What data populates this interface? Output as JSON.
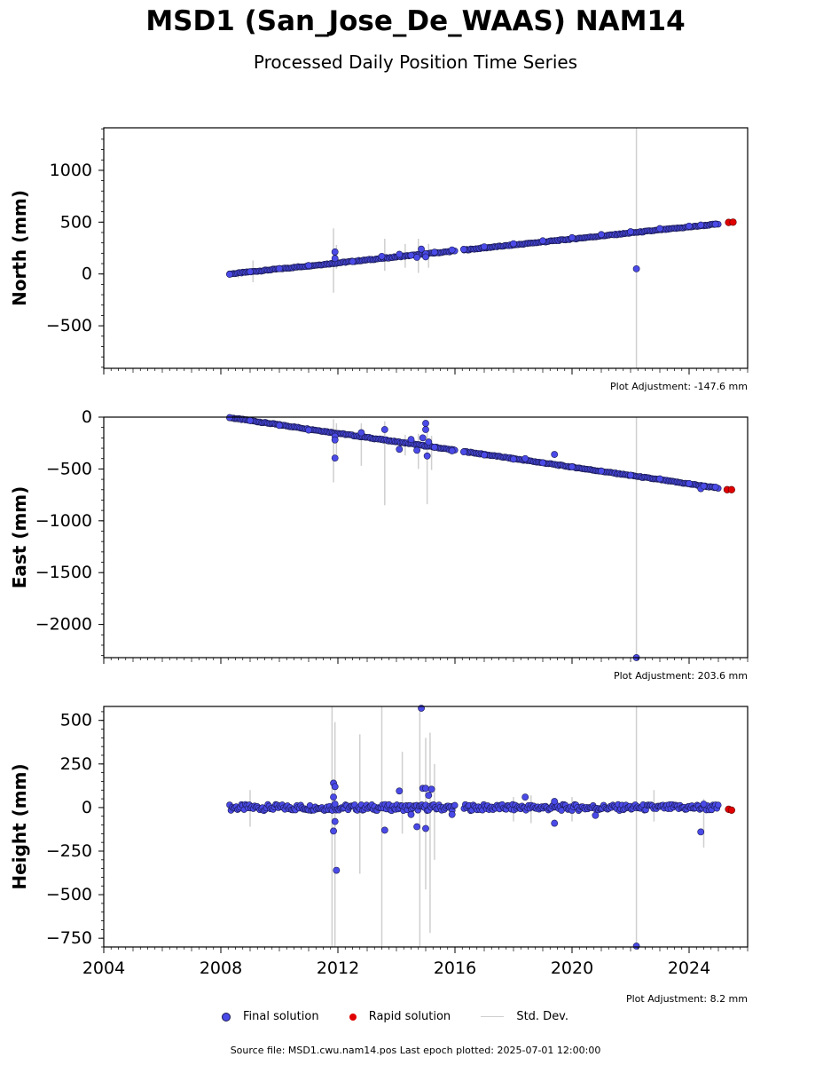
{
  "header": {
    "title": "MSD1 (San_Jose_De_WAAS) NAM14",
    "subtitle": "Processed Daily Position Time Series"
  },
  "legend": {
    "final": "Final solution",
    "rapid": "Rapid solution",
    "std": "Std. Dev."
  },
  "footer": {
    "source": "Source file: MSD1.cwu.nam14.pos  Last epoch plotted: 2025-07-01 12:00:00"
  },
  "colors": {
    "final": "#4a4ae8",
    "final_edge": "#1a1a50",
    "rapid": "#e00000",
    "std": "#cfcfcf"
  },
  "chart_data": [
    {
      "type": "scatter",
      "ylabel": "North (mm)",
      "adjustment": "Plot Adjustment: -147.6 mm",
      "xlim": [
        2004,
        2026
      ],
      "ylim": [
        -910,
        1410
      ],
      "yticks": [
        -500,
        0,
        500,
        1000
      ],
      "ytick_labels": [
        "−500",
        "0",
        "500",
        "1000"
      ],
      "trend": {
        "start": [
          2008.3,
          0
        ],
        "gap": [
          2016.0,
          2016.3
        ],
        "end": [
          2025.0,
          482
        ]
      },
      "final_points": [
        [
          2008.3,
          -3
        ],
        [
          2009.0,
          22
        ],
        [
          2010.0,
          52
        ],
        [
          2011.0,
          82
        ],
        [
          2011.9,
          213
        ],
        [
          2011.9,
          150
        ],
        [
          2012.5,
          120
        ],
        [
          2013.5,
          170
        ],
        [
          2014.1,
          190
        ],
        [
          2014.5,
          180
        ],
        [
          2014.7,
          160
        ],
        [
          2014.85,
          240
        ],
        [
          2015.0,
          195
        ],
        [
          2015.0,
          165
        ],
        [
          2015.3,
          210
        ],
        [
          2015.9,
          232
        ],
        [
          2016.3,
          238
        ],
        [
          2017.0,
          262
        ],
        [
          2018.0,
          292
        ],
        [
          2019.0,
          320
        ],
        [
          2020.0,
          350
        ],
        [
          2021.0,
          380
        ],
        [
          2022.0,
          408
        ],
        [
          2022.2,
          50
        ],
        [
          2023.0,
          438
        ],
        [
          2024.0,
          462
        ],
        [
          2024.4,
          472
        ],
        [
          2024.9,
          480
        ]
      ],
      "rapid_points": [
        [
          2025.35,
          497
        ],
        [
          2025.5,
          500
        ]
      ],
      "std_bars": [
        [
          2008.6,
          -40,
          40
        ],
        [
          2009.1,
          -80,
          130
        ],
        [
          2011.85,
          -180,
          440
        ],
        [
          2011.95,
          50,
          280
        ],
        [
          2013.6,
          30,
          340
        ],
        [
          2014.3,
          60,
          290
        ],
        [
          2014.75,
          10,
          340
        ],
        [
          2015.1,
          60,
          290
        ],
        [
          2022.2,
          -910,
          1410
        ]
      ]
    },
    {
      "type": "scatter",
      "ylabel": "East (mm)",
      "adjustment": "Plot Adjustment: 203.6 mm",
      "xlim": [
        2004,
        2026
      ],
      "ylim": [
        -2320,
        0
      ],
      "yticks": [
        -2000,
        -1500,
        -1000,
        -500,
        0
      ],
      "ytick_labels": [
        "−2000",
        "−1500",
        "−1000",
        "−500",
        "0"
      ],
      "trend": {
        "start": [
          2008.3,
          -5
        ],
        "gap": [
          2016.0,
          2016.3
        ],
        "end": [
          2025.0,
          -685
        ]
      },
      "final_points": [
        [
          2008.3,
          -5
        ],
        [
          2009.0,
          -33
        ],
        [
          2010.0,
          -80
        ],
        [
          2011.0,
          -125
        ],
        [
          2011.9,
          -185
        ],
        [
          2011.9,
          -395
        ],
        [
          2011.9,
          -220
        ],
        [
          2012.8,
          -150
        ],
        [
          2013.6,
          -120
        ],
        [
          2014.1,
          -310
        ],
        [
          2014.5,
          -215
        ],
        [
          2014.7,
          -320
        ],
        [
          2014.9,
          -200
        ],
        [
          2015.0,
          -60
        ],
        [
          2015.0,
          -120
        ],
        [
          2015.05,
          -375
        ],
        [
          2015.1,
          -240
        ],
        [
          2015.3,
          -290
        ],
        [
          2015.9,
          -325
        ],
        [
          2016.3,
          -335
        ],
        [
          2017.0,
          -365
        ],
        [
          2018.0,
          -405
        ],
        [
          2018.4,
          -400
        ],
        [
          2019.0,
          -440
        ],
        [
          2019.4,
          -360
        ],
        [
          2020.0,
          -480
        ],
        [
          2021.0,
          -520
        ],
        [
          2022.0,
          -560
        ],
        [
          2022.2,
          -2320
        ],
        [
          2023.0,
          -595
        ],
        [
          2024.0,
          -640
        ],
        [
          2024.4,
          -690
        ],
        [
          2024.5,
          -665
        ],
        [
          2024.9,
          -675
        ]
      ],
      "rapid_points": [
        [
          2025.3,
          -700
        ],
        [
          2025.45,
          -700
        ]
      ],
      "std_bars": [
        [
          2008.6,
          -60,
          10
        ],
        [
          2009.4,
          -70,
          -20
        ],
        [
          2011.85,
          -630,
          -20
        ],
        [
          2011.95,
          -360,
          -60
        ],
        [
          2012.8,
          -470,
          -60
        ],
        [
          2013.6,
          -850,
          -40
        ],
        [
          2014.3,
          -370,
          -170
        ],
        [
          2014.75,
          -500,
          -160
        ],
        [
          2015.05,
          -840,
          -30
        ],
        [
          2015.2,
          -510,
          -180
        ],
        [
          2022.2,
          -2320,
          0
        ]
      ]
    },
    {
      "type": "scatter",
      "ylabel": "Height (mm)",
      "adjustment": "Plot Adjustment: 8.2 mm",
      "xlim": [
        2004,
        2026
      ],
      "ylim": [
        -800,
        580
      ],
      "yticks": [
        -750,
        -500,
        -250,
        0,
        250,
        500
      ],
      "ytick_labels": [
        "−750",
        "−500",
        "−250",
        "0",
        "250",
        "500"
      ],
      "trend": {
        "start": [
          2008.3,
          0
        ],
        "gap": [
          2016.0,
          2016.3
        ],
        "end": [
          2025.0,
          0
        ]
      },
      "final_points": [
        [
          2011.85,
          140
        ],
        [
          2011.9,
          120
        ],
        [
          2011.85,
          60
        ],
        [
          2011.9,
          20
        ],
        [
          2011.9,
          -80
        ],
        [
          2011.85,
          -135
        ],
        [
          2011.95,
          -360
        ],
        [
          2013.6,
          -130
        ],
        [
          2014.1,
          95
        ],
        [
          2014.5,
          -40
        ],
        [
          2014.7,
          -110
        ],
        [
          2014.85,
          570
        ],
        [
          2014.9,
          110
        ],
        [
          2015.0,
          110
        ],
        [
          2015.0,
          -120
        ],
        [
          2015.1,
          70
        ],
        [
          2015.2,
          105
        ],
        [
          2015.9,
          -40
        ],
        [
          2018.4,
          60
        ],
        [
          2019.4,
          35
        ],
        [
          2019.4,
          -90
        ],
        [
          2020.8,
          -45
        ],
        [
          2022.2,
          -795
        ],
        [
          2024.4,
          -140
        ],
        [
          2024.5,
          20
        ]
      ],
      "rapid_points": [
        [
          2025.35,
          -10
        ],
        [
          2025.45,
          -15
        ]
      ],
      "std_bars": [
        [
          2009.0,
          -110,
          100
        ],
        [
          2011.8,
          -800,
          580
        ],
        [
          2011.9,
          -800,
          490
        ],
        [
          2012.75,
          -380,
          420
        ],
        [
          2013.5,
          -800,
          580
        ],
        [
          2014.2,
          -150,
          320
        ],
        [
          2014.8,
          -800,
          580
        ],
        [
          2015.0,
          -470,
          400
        ],
        [
          2015.15,
          -720,
          430
        ],
        [
          2015.3,
          -300,
          250
        ],
        [
          2018.0,
          -80,
          60
        ],
        [
          2018.6,
          -90,
          70
        ],
        [
          2020.0,
          -80,
          60
        ],
        [
          2022.2,
          -800,
          580
        ],
        [
          2022.8,
          -80,
          100
        ],
        [
          2024.5,
          -230,
          50
        ]
      ]
    }
  ],
  "x_axis": {
    "ticks": [
      2004,
      2008,
      2012,
      2016,
      2020,
      2024
    ],
    "tick_labels": [
      "2004",
      "2008",
      "2012",
      "2016",
      "2020",
      "2024"
    ]
  }
}
